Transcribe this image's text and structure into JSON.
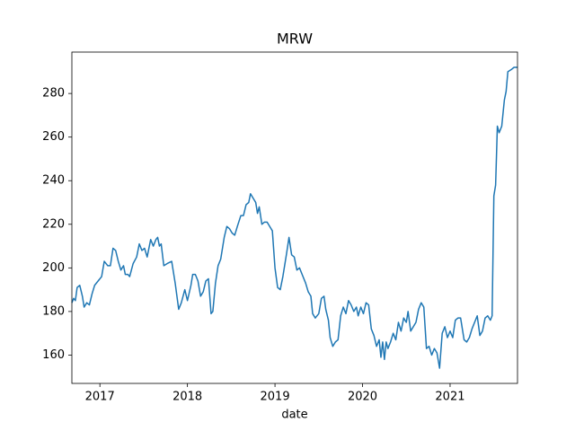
{
  "chart_data": {
    "type": "line",
    "title": "MRW",
    "x_label": "date",
    "color": "#1f77b4",
    "x": [
      2016.68,
      2016.7,
      2016.72,
      2016.74,
      2016.77,
      2016.8,
      2016.82,
      2016.85,
      2016.88,
      2016.91,
      2016.94,
      2016.98,
      2017.02,
      2017.05,
      2017.09,
      2017.12,
      2017.15,
      2017.18,
      2017.21,
      2017.24,
      2017.27,
      2017.29,
      2017.32,
      2017.34,
      2017.38,
      2017.42,
      2017.45,
      2017.48,
      2017.51,
      2017.54,
      2017.58,
      2017.61,
      2017.64,
      2017.66,
      2017.68,
      2017.7,
      2017.73,
      2017.77,
      2017.82,
      2017.86,
      2017.9,
      2017.93,
      2017.97,
      2018.0,
      2018.04,
      2018.06,
      2018.09,
      2018.12,
      2018.15,
      2018.18,
      2018.21,
      2018.24,
      2018.27,
      2018.29,
      2018.32,
      2018.35,
      2018.38,
      2018.42,
      2018.45,
      2018.48,
      2018.51,
      2018.54,
      2018.57,
      2018.61,
      2018.64,
      2018.67,
      2018.7,
      2018.72,
      2018.75,
      2018.78,
      2018.8,
      2018.82,
      2018.85,
      2018.88,
      2018.91,
      2018.94,
      2018.97,
      2019.0,
      2019.03,
      2019.06,
      2019.09,
      2019.13,
      2019.16,
      2019.19,
      2019.22,
      2019.25,
      2019.28,
      2019.31,
      2019.35,
      2019.38,
      2019.41,
      2019.43,
      2019.46,
      2019.5,
      2019.53,
      2019.56,
      2019.58,
      2019.61,
      2019.63,
      2019.66,
      2019.69,
      2019.72,
      2019.75,
      2019.78,
      2019.81,
      2019.84,
      2019.87,
      2019.9,
      2019.93,
      2019.95,
      2019.98,
      2020.01,
      2020.04,
      2020.07,
      2020.1,
      2020.13,
      2020.16,
      2020.19,
      2020.21,
      2020.23,
      2020.25,
      2020.27,
      2020.29,
      2020.32,
      2020.35,
      2020.38,
      2020.41,
      2020.44,
      2020.47,
      2020.5,
      2020.52,
      2020.55,
      2020.58,
      2020.61,
      2020.64,
      2020.67,
      2020.7,
      2020.73,
      2020.76,
      2020.79,
      2020.82,
      2020.85,
      2020.88,
      2020.91,
      2020.94,
      2020.97,
      2021.0,
      2021.03,
      2021.06,
      2021.09,
      2021.12,
      2021.16,
      2021.19,
      2021.22,
      2021.25,
      2021.28,
      2021.31,
      2021.34,
      2021.37,
      2021.4,
      2021.43,
      2021.46,
      2021.48,
      2021.5,
      2021.52,
      2021.54,
      2021.56,
      2021.59,
      2021.62,
      2021.64,
      2021.66,
      2021.7,
      2021.73,
      2021.77
    ],
    "values": [
      184,
      186,
      185,
      191,
      192,
      187,
      182,
      184,
      183,
      188,
      192,
      194,
      196,
      203,
      201,
      201,
      209,
      208,
      203,
      199,
      201,
      197,
      197,
      196,
      202,
      205,
      211,
      208,
      209,
      205,
      213,
      210,
      213,
      214,
      210,
      211,
      201,
      202,
      203,
      193,
      181,
      184,
      190,
      185,
      192,
      197,
      197,
      194,
      187,
      189,
      194,
      195,
      179,
      180,
      193,
      201,
      204,
      214,
      219,
      218,
      216,
      215,
      219,
      224,
      224,
      229,
      230,
      234,
      232,
      230,
      225,
      228,
      220,
      221,
      221,
      219,
      217,
      200,
      191,
      190,
      196,
      206,
      214,
      206,
      205,
      199,
      200,
      197,
      193,
      189,
      187,
      179,
      177,
      179,
      186,
      187,
      181,
      176,
      168,
      164,
      166,
      167,
      178,
      182,
      179,
      185,
      183,
      180,
      182,
      178,
      182,
      179,
      184,
      183,
      172,
      169,
      164,
      167,
      159,
      166,
      158,
      166,
      163,
      166,
      170,
      167,
      175,
      171,
      177,
      175,
      180,
      171,
      173,
      175,
      181,
      184,
      182,
      163,
      164,
      160,
      163,
      161,
      154,
      170,
      173,
      168,
      171,
      168,
      176,
      177,
      177,
      167,
      166,
      168,
      172,
      175,
      178,
      169,
      171,
      177,
      178,
      176,
      178,
      233,
      238,
      265,
      262,
      265,
      277,
      281,
      290,
      291,
      292,
      292
    ],
    "xlim": [
      2016.68,
      2021.77
    ],
    "xticks": [
      2017,
      2018,
      2019,
      2020,
      2021
    ],
    "ylim": [
      147,
      299
    ],
    "yticks": [
      160,
      180,
      200,
      220,
      240,
      260,
      280
    ]
  }
}
